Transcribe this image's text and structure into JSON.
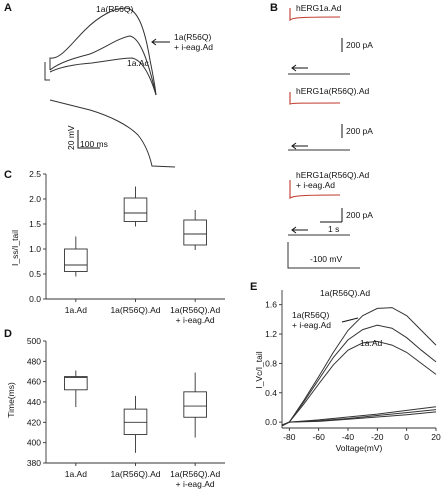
{
  "panels": {
    "A": {
      "letter": "A",
      "labels": [
        "1a(R56Q)",
        "1a(R56Q)",
        "+ i-eag.Ad",
        "1a.Ac"
      ],
      "scalebar": {
        "voltage": "20 mV",
        "time": "100 ms"
      }
    },
    "B": {
      "letter": "B",
      "traces": [
        {
          "label": "hERG1a.Ad",
          "scale": "200 pA"
        },
        {
          "label": "hERG1a(R56Q).Ad",
          "scale": "200 pA"
        },
        {
          "label": "hERG1a(R56Q).Ad",
          "label2": "+ i-eag.Ad",
          "scale": "200 pA",
          "time_scale": "1 s"
        }
      ],
      "voltage_label": "-100 mV"
    },
    "C": {
      "letter": "C",
      "ylabel": "I_ss/I_tail"
    },
    "D": {
      "letter": "D",
      "ylabel": "Time(ms)"
    },
    "E": {
      "letter": "E",
      "ylabel": "I_Vc/I_tail",
      "xlabel": "Voltage(mV)"
    }
  },
  "chart_data": [
    {
      "panel": "C",
      "type": "box",
      "categories": [
        "1a.Ad",
        "1a(R56Q).Ad",
        "1a(R56Q).Ad + i-eag.Ad"
      ],
      "category_lines": [
        [
          "1a.Ad"
        ],
        [
          "1a(R56Q).Ad"
        ],
        [
          "1a(R56Q).Ad",
          "+ i-eag.Ad"
        ]
      ],
      "ylabel": "I_ss/I_tail",
      "ylim": [
        0,
        2.5
      ],
      "yticks": [
        "0.0",
        "0.5",
        "1.0",
        "1.5",
        "2.0",
        "2.5"
      ],
      "boxes": [
        {
          "whisker_low": 0.45,
          "q1": 0.55,
          "median": 0.68,
          "q3": 1.0,
          "whisker_high": 1.25
        },
        {
          "whisker_low": 1.45,
          "q1": 1.55,
          "median": 1.72,
          "q3": 2.02,
          "whisker_high": 2.25
        },
        {
          "whisker_low": 0.98,
          "q1": 1.08,
          "median": 1.3,
          "q3": 1.58,
          "whisker_high": 1.78
        }
      ]
    },
    {
      "panel": "D",
      "type": "box",
      "categories": [
        "1a.Ad",
        "1a(R56Q).Ad",
        "1a(R56Q).Ad + i-eag.Ad"
      ],
      "category_lines": [
        [
          "1a.Ad"
        ],
        [
          "1a(R56Q).Ad"
        ],
        [
          "1a(R56Q).Ad",
          "+ i-eag.Ad"
        ]
      ],
      "ylabel": "Time(ms)",
      "ylim": [
        380,
        500
      ],
      "yticks": [
        "380",
        "400",
        "420",
        "440",
        "460",
        "480",
        "500"
      ],
      "boxes": [
        {
          "whisker_low": 435,
          "q1": 452,
          "median": 464,
          "q3": 465,
          "whisker_high": 471
        },
        {
          "whisker_low": 390,
          "q1": 408,
          "median": 420,
          "q3": 433,
          "whisker_high": 446
        },
        {
          "whisker_low": 405,
          "q1": 425,
          "median": 436,
          "q3": 450,
          "whisker_high": 469
        }
      ]
    },
    {
      "panel": "E",
      "type": "line",
      "xlabel": "Voltage(mV)",
      "ylabel": "I_Vc/I_tail",
      "xlim": [
        -85,
        20
      ],
      "ylim": [
        -0.08,
        1.8
      ],
      "xticks": [
        "-80",
        "-60",
        "-40",
        "-20",
        "0",
        "20"
      ],
      "yticks": [
        "0.0",
        "0.4",
        "0.8",
        "1.2",
        "1.6"
      ],
      "labels": [
        "1a(R56Q).Ad",
        "1a(R56Q)",
        "+ i-eag.Ad",
        "1a.Ad"
      ],
      "series": [
        {
          "x": [
            -85,
            -80,
            -70,
            -60,
            -50,
            -40,
            -30,
            -20,
            -10,
            0,
            10,
            20
          ],
          "y": [
            -0.05,
            0.0,
            0.3,
            0.62,
            0.95,
            1.25,
            1.45,
            1.55,
            1.56,
            1.45,
            1.25,
            1.05
          ]
        },
        {
          "x": [
            -85,
            -80,
            -70,
            -60,
            -50,
            -40,
            -30,
            -20,
            -10,
            0,
            10,
            20
          ],
          "y": [
            -0.05,
            0.0,
            0.28,
            0.58,
            0.88,
            1.12,
            1.26,
            1.32,
            1.28,
            1.15,
            0.98,
            0.82
          ]
        },
        {
          "x": [
            -85,
            -80,
            -70,
            -60,
            -50,
            -40,
            -30,
            -20,
            -10,
            0,
            10,
            20
          ],
          "y": [
            -0.05,
            0.0,
            0.25,
            0.52,
            0.78,
            0.98,
            1.08,
            1.1,
            1.05,
            0.95,
            0.8,
            0.65
          ]
        },
        {
          "x": [
            -85,
            -80,
            -60,
            -40,
            -20,
            0,
            20
          ],
          "y": [
            -0.04,
            0.0,
            0.03,
            0.07,
            0.11,
            0.16,
            0.21
          ]
        },
        {
          "x": [
            -85,
            -80,
            -60,
            -40,
            -20,
            0,
            20
          ],
          "y": [
            -0.04,
            0.0,
            0.02,
            0.05,
            0.09,
            0.13,
            0.17
          ]
        },
        {
          "x": [
            -85,
            -80,
            -60,
            -40,
            -20,
            0,
            20
          ],
          "y": [
            -0.04,
            0.0,
            0.01,
            0.04,
            0.07,
            0.1,
            0.14
          ]
        }
      ]
    }
  ]
}
